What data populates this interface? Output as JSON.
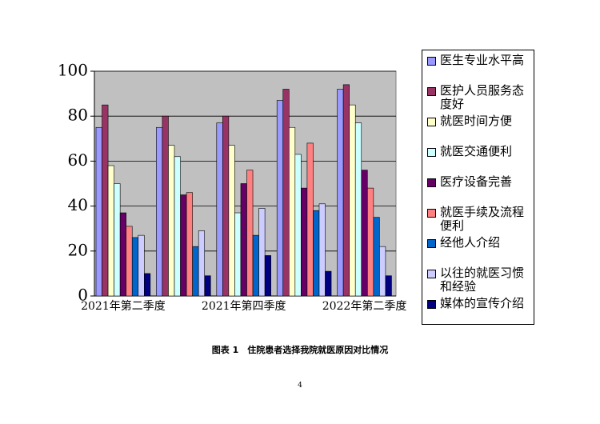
{
  "chart_data": {
    "type": "bar",
    "categories": [
      "2021年第二季度",
      null,
      "2021年第四季度",
      null,
      "2022年第二季度"
    ],
    "series": [
      {
        "name": "医生专业水平高",
        "color": "#9999ff",
        "values": [
          75,
          75,
          77,
          87,
          92
        ]
      },
      {
        "name": "医护人员服务态度好",
        "color": "#993366",
        "values": [
          85,
          80,
          80,
          92,
          94
        ]
      },
      {
        "name": "就医时间方便",
        "color": "#ffffcc",
        "values": [
          58,
          67,
          67,
          75,
          85
        ]
      },
      {
        "name": "就医交通便利",
        "color": "#ccffff",
        "values": [
          50,
          62,
          37,
          63,
          77
        ]
      },
      {
        "name": "医疗设备完善",
        "color": "#660066",
        "values": [
          37,
          45,
          50,
          48,
          56
        ]
      },
      {
        "name": "就医手续及流程便利",
        "color": "#ff8080",
        "values": [
          31,
          46,
          56,
          68,
          48
        ]
      },
      {
        "name": "经他人介绍",
        "color": "#0066cc",
        "values": [
          26,
          22,
          27,
          38,
          35
        ]
      },
      {
        "name": "以往的就医习惯和经验",
        "color": "#ccccff",
        "values": [
          27,
          29,
          39,
          41,
          22
        ]
      },
      {
        "name": "媒体的宣传介绍",
        "color": "#000080",
        "values": [
          10,
          9,
          18,
          11,
          9
        ]
      }
    ],
    "ylim": [
      0,
      100
    ],
    "yticks": [
      0,
      20,
      40,
      60,
      80,
      100
    ],
    "grid": true,
    "legend": "right"
  },
  "caption": "图表 1　住院患者选择我院就医原因对比情况",
  "page_number": "4"
}
